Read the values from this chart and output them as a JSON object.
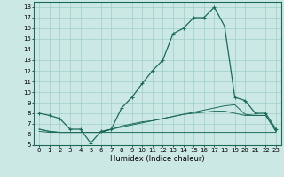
{
  "xlabel": "Humidex (Indice chaleur)",
  "xlim": [
    -0.5,
    23.5
  ],
  "ylim": [
    5,
    18.5
  ],
  "yticks": [
    5,
    6,
    7,
    8,
    9,
    10,
    11,
    12,
    13,
    14,
    15,
    16,
    17,
    18
  ],
  "xticks": [
    0,
    1,
    2,
    3,
    4,
    5,
    6,
    7,
    8,
    9,
    10,
    11,
    12,
    13,
    14,
    15,
    16,
    17,
    18,
    19,
    20,
    21,
    22,
    23
  ],
  "bg_color": "#cce8e4",
  "line_color": "#1a6b5a",
  "grid_color": "#9ecec8",
  "line1": [
    8.0,
    7.8,
    7.5,
    6.5,
    6.5,
    5.2,
    6.3,
    6.5,
    8.5,
    9.5,
    10.8,
    12.0,
    13.0,
    15.5,
    16.0,
    17.0,
    17.0,
    18.0,
    16.2,
    9.5,
    9.2,
    8.0,
    8.0,
    6.5
  ],
  "line2": [
    6.5,
    6.3,
    6.2,
    6.2,
    6.2,
    6.2,
    6.2,
    6.5,
    6.8,
    7.0,
    7.2,
    7.3,
    7.5,
    7.7,
    7.9,
    8.1,
    8.3,
    8.5,
    8.7,
    8.8,
    7.9,
    7.8,
    7.8,
    6.3
  ],
  "line3": [
    6.3,
    6.2,
    6.2,
    6.2,
    6.2,
    6.2,
    6.2,
    6.2,
    6.2,
    6.2,
    6.2,
    6.2,
    6.2,
    6.2,
    6.2,
    6.2,
    6.2,
    6.2,
    6.2,
    6.2,
    6.2,
    6.2,
    6.2,
    6.2
  ],
  "line4": [
    6.5,
    6.3,
    6.2,
    6.2,
    6.2,
    6.2,
    6.2,
    6.5,
    6.7,
    6.9,
    7.1,
    7.3,
    7.5,
    7.7,
    7.9,
    8.0,
    8.1,
    8.2,
    8.2,
    8.0,
    7.8,
    7.8,
    7.8,
    6.3
  ]
}
